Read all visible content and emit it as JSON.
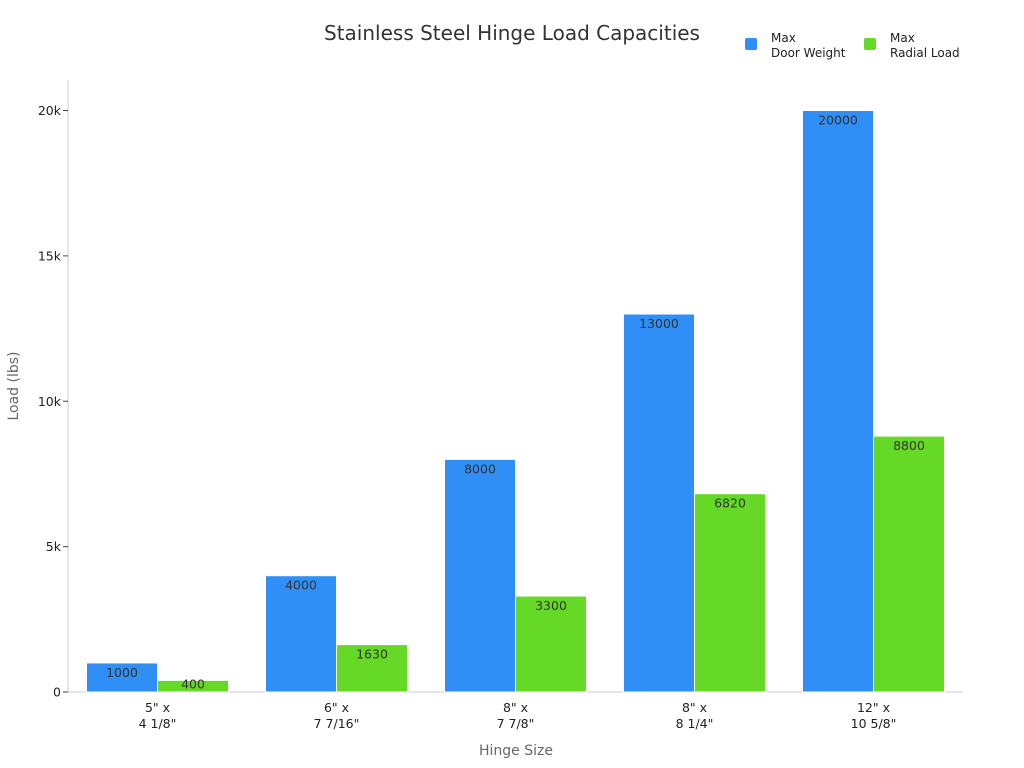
{
  "chart_data": {
    "type": "bar",
    "title": "Stainless Steel Hinge Load Capacities",
    "xlabel": "Hinge Size",
    "ylabel": "Load (lbs)",
    "categories": [
      [
        "5\" x",
        "4 1/8\""
      ],
      [
        "6\" x",
        "7 7/16\""
      ],
      [
        "8\" x",
        "7 7/8\""
      ],
      [
        "8\" x",
        "8 1/4\""
      ],
      [
        "12\" x",
        "10 5/8\""
      ]
    ],
    "series": [
      {
        "name": [
          "Max",
          "Door Weight"
        ],
        "color": "#2f8ff6",
        "values": [
          1000,
          4000,
          8000,
          13000,
          20000
        ]
      },
      {
        "name": [
          "Max",
          "Radial Load"
        ],
        "color": "#66d926",
        "values": [
          400,
          1630,
          3300,
          6820,
          8800
        ]
      }
    ],
    "ylim": [
      0,
      21000
    ],
    "yticks": [
      0,
      5000,
      10000,
      15000,
      20000
    ],
    "ytick_labels": [
      "0",
      "5k",
      "10k",
      "15k",
      "20k"
    ],
    "grid": false,
    "legend": "top-right"
  }
}
